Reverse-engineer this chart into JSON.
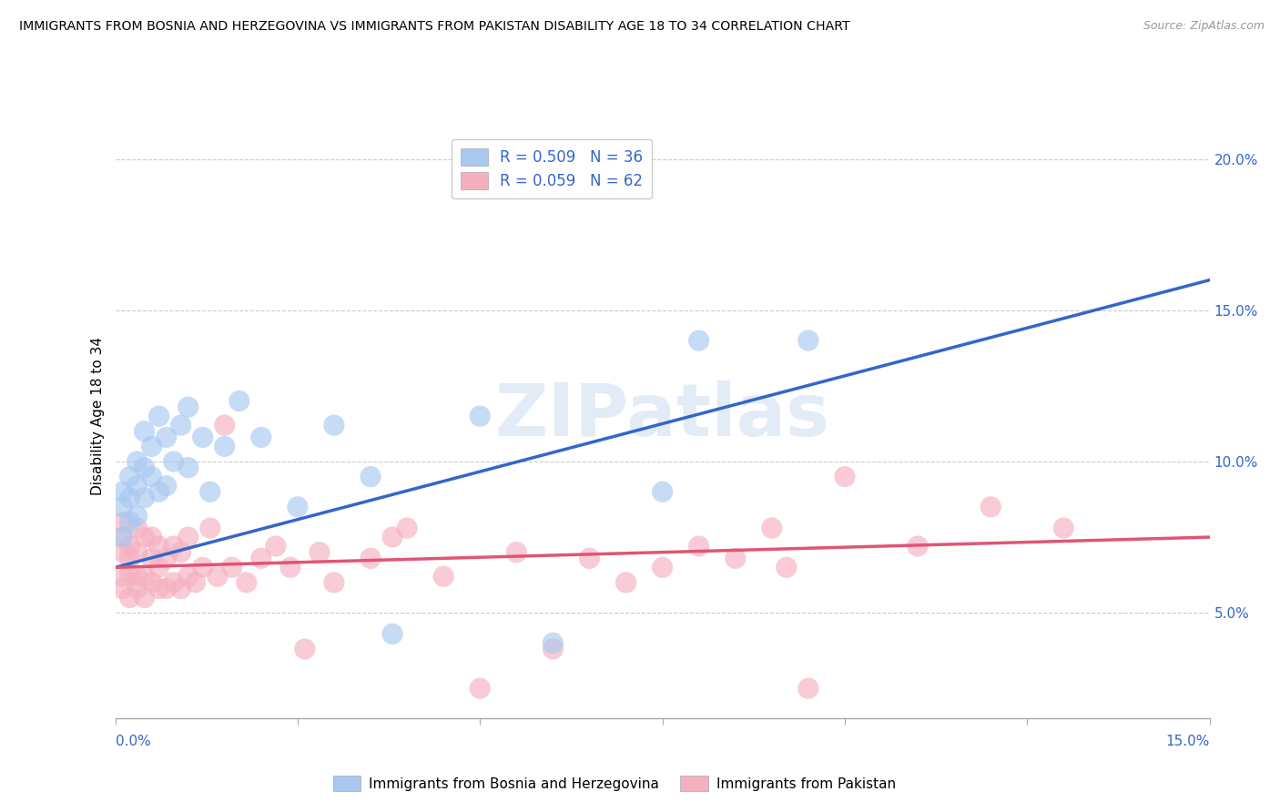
{
  "title": "IMMIGRANTS FROM BOSNIA AND HERZEGOVINA VS IMMIGRANTS FROM PAKISTAN DISABILITY AGE 18 TO 34 CORRELATION CHART",
  "source": "Source: ZipAtlas.com",
  "ylabel": "Disability Age 18 to 34",
  "ylabel_right_vals": [
    0.05,
    0.1,
    0.15,
    0.2
  ],
  "xlim": [
    0.0,
    0.15
  ],
  "ylim": [
    0.015,
    0.215
  ],
  "bosnia_R": 0.509,
  "bosnia_N": 36,
  "pakistan_R": 0.059,
  "pakistan_N": 62,
  "bosnia_color": "#a8c8f0",
  "pakistan_color": "#f5b0c0",
  "bosnia_line_color": "#3366cc",
  "pakistan_line_color": "#e05575",
  "legend_text_color": "#3366cc",
  "watermark": "ZIPatlas",
  "legend_label_bosnia": "Immigrants from Bosnia and Herzegovina",
  "legend_label_pakistan": "Immigrants from Pakistan",
  "bosnia_x": [
    0.001,
    0.001,
    0.001,
    0.002,
    0.002,
    0.002,
    0.003,
    0.003,
    0.003,
    0.004,
    0.004,
    0.004,
    0.005,
    0.005,
    0.006,
    0.006,
    0.007,
    0.007,
    0.008,
    0.009,
    0.01,
    0.01,
    0.012,
    0.013,
    0.015,
    0.017,
    0.02,
    0.025,
    0.03,
    0.035,
    0.038,
    0.05,
    0.06,
    0.075,
    0.08,
    0.095
  ],
  "bosnia_y": [
    0.075,
    0.085,
    0.09,
    0.08,
    0.088,
    0.095,
    0.082,
    0.092,
    0.1,
    0.088,
    0.098,
    0.11,
    0.095,
    0.105,
    0.09,
    0.115,
    0.092,
    0.108,
    0.1,
    0.112,
    0.098,
    0.118,
    0.108,
    0.09,
    0.105,
    0.12,
    0.108,
    0.085,
    0.112,
    0.095,
    0.043,
    0.115,
    0.04,
    0.09,
    0.14,
    0.14
  ],
  "pakistan_x": [
    0.001,
    0.001,
    0.001,
    0.001,
    0.001,
    0.002,
    0.002,
    0.002,
    0.002,
    0.003,
    0.003,
    0.003,
    0.003,
    0.004,
    0.004,
    0.004,
    0.005,
    0.005,
    0.005,
    0.006,
    0.006,
    0.006,
    0.007,
    0.007,
    0.008,
    0.008,
    0.009,
    0.009,
    0.01,
    0.01,
    0.011,
    0.012,
    0.013,
    0.014,
    0.015,
    0.016,
    0.018,
    0.02,
    0.022,
    0.024,
    0.026,
    0.028,
    0.03,
    0.035,
    0.038,
    0.04,
    0.045,
    0.05,
    0.055,
    0.06,
    0.065,
    0.07,
    0.075,
    0.08,
    0.085,
    0.09,
    0.092,
    0.095,
    0.1,
    0.11,
    0.12,
    0.13
  ],
  "pakistan_y": [
    0.058,
    0.062,
    0.07,
    0.075,
    0.08,
    0.055,
    0.063,
    0.068,
    0.072,
    0.058,
    0.062,
    0.07,
    0.078,
    0.055,
    0.062,
    0.075,
    0.06,
    0.068,
    0.075,
    0.058,
    0.065,
    0.072,
    0.058,
    0.068,
    0.06,
    0.072,
    0.058,
    0.07,
    0.062,
    0.075,
    0.06,
    0.065,
    0.078,
    0.062,
    0.112,
    0.065,
    0.06,
    0.068,
    0.072,
    0.065,
    0.038,
    0.07,
    0.06,
    0.068,
    0.075,
    0.078,
    0.062,
    0.025,
    0.07,
    0.038,
    0.068,
    0.06,
    0.065,
    0.072,
    0.068,
    0.078,
    0.065,
    0.025,
    0.095,
    0.072,
    0.085,
    0.078
  ],
  "bosnia_line_x0": 0.0,
  "bosnia_line_y0": 0.065,
  "bosnia_line_x1": 0.15,
  "bosnia_line_y1": 0.16,
  "pakistan_line_x0": 0.0,
  "pakistan_line_y0": 0.065,
  "pakistan_line_x1": 0.15,
  "pakistan_line_y1": 0.075
}
